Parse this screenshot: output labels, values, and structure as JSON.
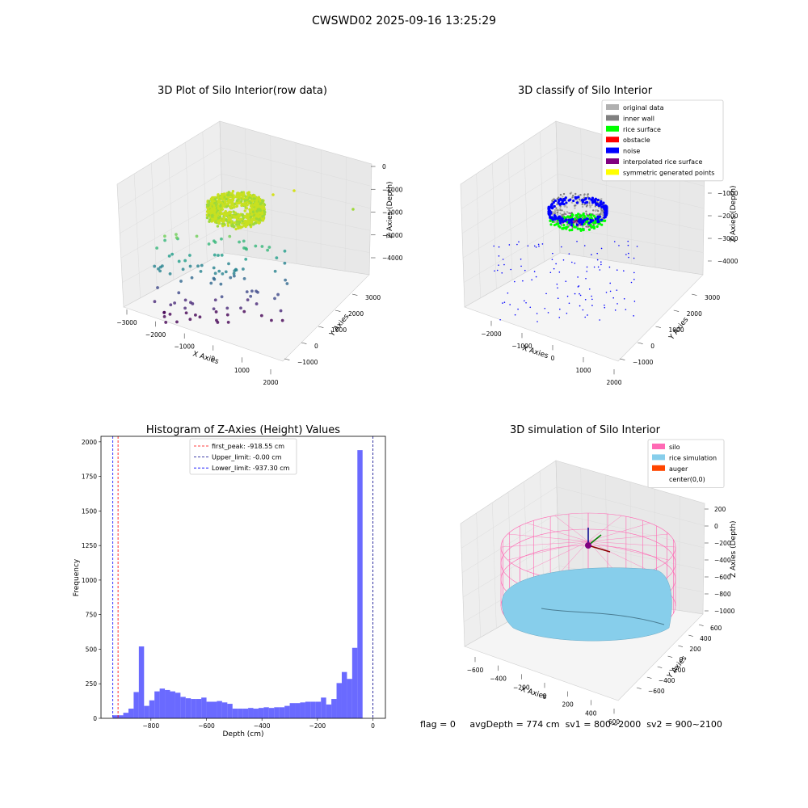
{
  "figure": {
    "title": "CWSWD02 2025-09-16 13:25:29",
    "status_line": {
      "flag": "flag = 0",
      "avg_depth": "avgDepth = 774 cm",
      "sv1": "sv1 = 800~2000",
      "sv2": "sv2 = 900~2100"
    }
  },
  "colors": {
    "pane": "#f2f2f2",
    "pane_line": "#cfcfcf",
    "hist_bar": "#5050ff",
    "silo": "#ff69b4",
    "rice": "#87ceeb",
    "auger": "#ff4500",
    "first_peak": "#ff0000",
    "upper_limit": "#00008b",
    "lower_limit": "#0000ff"
  },
  "chart_data": [
    {
      "type": "scatter",
      "title": "3D Plot of Silo Interior(row data)",
      "xlabel": "X Axies",
      "ylabel": "Y Axies",
      "zlabel": "Z Axies (Depth)",
      "x_ticks": [
        "−3000",
        "−2000",
        "−1000",
        "0",
        "1000",
        "2000"
      ],
      "y_ticks": [
        "−1000",
        "0",
        "1000",
        "2000",
        "3000"
      ],
      "z_ticks": [
        "−4000",
        "−3000",
        "−2000",
        "−1000",
        "0"
      ],
      "colormap": "viridis"
    },
    {
      "type": "scatter",
      "title": "3D classify of Silo Interior",
      "xlabel": "X Axies",
      "ylabel": "Y Axies",
      "zlabel": "Z Axies (Depth)",
      "x_ticks": [
        "−2000",
        "−1000",
        "0",
        "1000",
        "2000"
      ],
      "y_ticks": [
        "−1000",
        "0",
        "1000",
        "2000",
        "3000"
      ],
      "z_ticks": [
        "−4000",
        "−3000",
        "−2000",
        "−1000"
      ],
      "legend": {
        "position": "upper right",
        "entries": [
          {
            "label": "original data",
            "color": "#b0b0b0"
          },
          {
            "label": "inner wall",
            "color": "#808080"
          },
          {
            "label": "rice surface",
            "color": "#00ff00"
          },
          {
            "label": "obstacle",
            "color": "#ff0000"
          },
          {
            "label": "noise",
            "color": "#0000ff"
          },
          {
            "label": "interpolated rice surface",
            "color": "#800080"
          },
          {
            "label": "symmetric generated points",
            "color": "#ffff00"
          }
        ]
      }
    },
    {
      "type": "bar",
      "title": "Histogram of Z-Axies (Height) Values",
      "xlabel": "Depth (cm)",
      "ylabel": "Frequency",
      "xlim": [
        -980,
        45
      ],
      "ylim": [
        0,
        2040
      ],
      "x_ticks": [
        {
          "v": -800,
          "t": "−800"
        },
        {
          "v": -600,
          "t": "−600"
        },
        {
          "v": -400,
          "t": "−400"
        },
        {
          "v": -200,
          "t": "−200"
        },
        {
          "v": 0,
          "t": "0"
        }
      ],
      "y_ticks": [
        {
          "v": 0,
          "t": "0"
        },
        {
          "v": 250,
          "t": "250"
        },
        {
          "v": 500,
          "t": "500"
        },
        {
          "v": 750,
          "t": "750"
        },
        {
          "v": 1000,
          "t": "1000"
        },
        {
          "v": 1250,
          "t": "1250"
        },
        {
          "v": 1500,
          "t": "1500"
        },
        {
          "v": 1750,
          "t": "1750"
        },
        {
          "v": 2000,
          "t": "2000"
        }
      ],
      "bin_start": -937.3,
      "bin_width": 18.75,
      "values": [
        22,
        22,
        40,
        70,
        190,
        520,
        90,
        130,
        195,
        215,
        205,
        195,
        185,
        155,
        145,
        140,
        140,
        150,
        120,
        120,
        125,
        115,
        105,
        70,
        70,
        70,
        75,
        70,
        75,
        80,
        75,
        80,
        80,
        90,
        110,
        110,
        115,
        120,
        120,
        120,
        150,
        100,
        140,
        255,
        335,
        285,
        510,
        1940
      ],
      "lines": [
        {
          "label": "first_peak: -918.55 cm",
          "x": -918.55,
          "color": "#ff0000"
        },
        {
          "label": "Upper_limit: -0.00 cm",
          "x": 0,
          "color": "#00008b"
        },
        {
          "label": "Lower_limit: -937.30 cm",
          "x": -937.3,
          "color": "#0000ff"
        }
      ],
      "legend": {
        "position": "upper center"
      }
    },
    {
      "type": "scatter",
      "title": "3D simulation of Silo Interior",
      "xlabel": "X Axies",
      "ylabel": "Y Axies",
      "zlabel": "Z Axies (Depth)",
      "x_ticks": [
        "−600",
        "−400",
        "−200",
        "0",
        "200",
        "400",
        "600"
      ],
      "y_ticks": [
        "−600",
        "−400",
        "−200",
        "0",
        "200",
        "400",
        "600"
      ],
      "z_ticks": [
        "−1000",
        "−800",
        "−600",
        "−400",
        "−200",
        "0",
        "200"
      ],
      "legend": {
        "position": "upper right",
        "entries": [
          {
            "label": "silo",
            "color": "#ff69b4"
          },
          {
            "label": "rice simulation",
            "color": "#87ceeb"
          },
          {
            "label": "auger",
            "color": "#ff4500"
          },
          {
            "label": "center(0,0)",
            "color": "#ffffff"
          }
        ]
      }
    }
  ]
}
